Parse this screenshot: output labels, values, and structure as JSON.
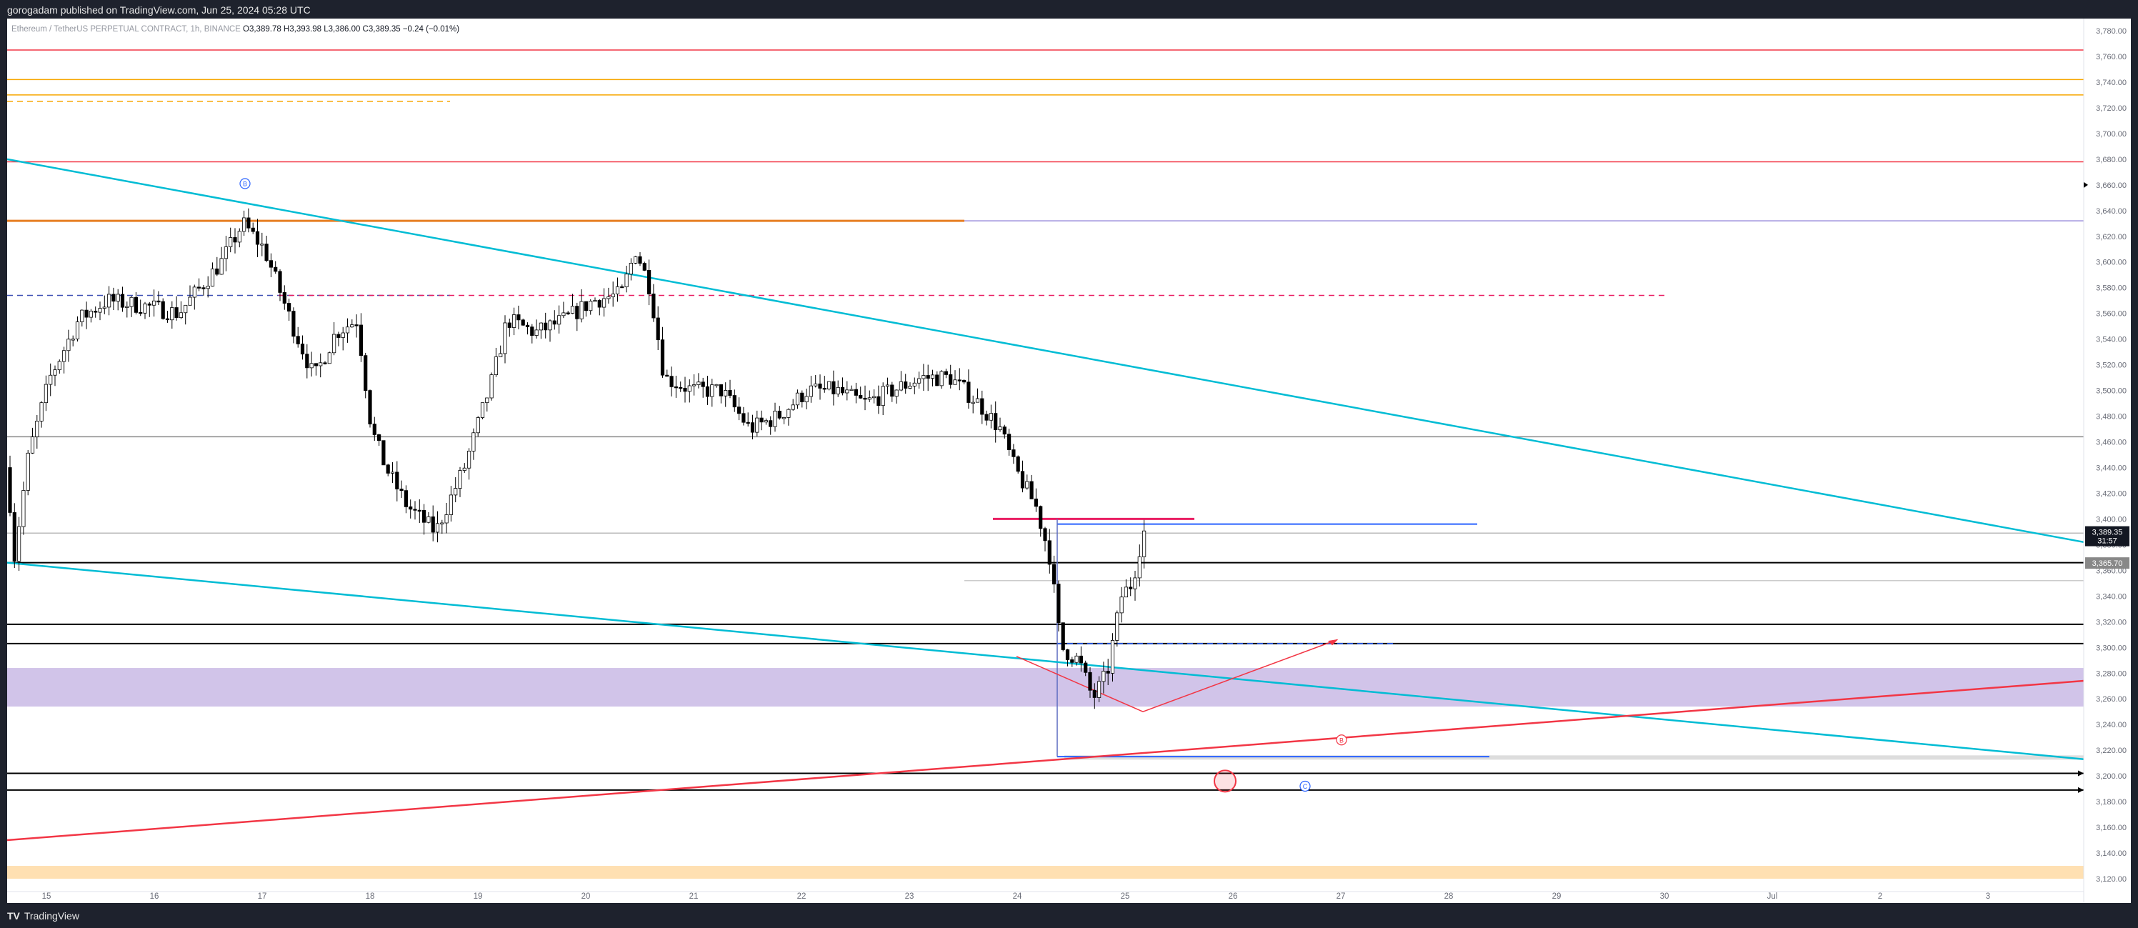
{
  "header": {
    "publisher_line": "gorogadam published on TradingView.com, Jun 25, 2024 05:28 UTC"
  },
  "footer": {
    "brand": "TradingView",
    "brand_logo": "TV"
  },
  "colors": {
    "candle_up_fill": "#ffffff",
    "candle_down_fill": "#000000",
    "candle_outline": "#000000",
    "teal": "#00bcd4",
    "red": "#f23645",
    "orange": "#f7a600",
    "purple_zone": "#d1c4e9",
    "peach_zone": "#ffe0b2",
    "blue": "#2962ff",
    "magenta": "#e91e63"
  },
  "chart_data": {
    "type": "candlestick",
    "symbol_line": "Ethereum / TetherUS PERPETUAL CONTRACT, 1h, BINANCE",
    "ohlc": {
      "open": "O3,389.78",
      "high": "H3,393.98",
      "low": "L3,386.00",
      "close": "C3,389.35",
      "change": "−0.24 (−0.01%)"
    },
    "price_axis": {
      "min": 3110,
      "max": 3785,
      "ticks": [
        "3,120.00",
        "3,140.00",
        "3,160.00",
        "3,180.00",
        "3,200.00",
        "3,220.00",
        "3,240.00",
        "3,260.00",
        "3,280.00",
        "3,300.00",
        "3,320.00",
        "3,340.00",
        "3,360.00",
        "3,380.00",
        "3,400.00",
        "3,420.00",
        "3,440.00",
        "3,460.00",
        "3,480.00",
        "3,500.00",
        "3,520.00",
        "3,540.00",
        "3,560.00",
        "3,580.00",
        "3,600.00",
        "3,620.00",
        "3,640.00",
        "3,660.00",
        "3,680.00",
        "3,700.00",
        "3,720.00",
        "3,740.00",
        "3,760.00",
        "3,780.00"
      ]
    },
    "time_axis": {
      "labels": [
        "15",
        "16",
        "17",
        "18",
        "19",
        "20",
        "21",
        "22",
        "23",
        "24",
        "25",
        "26",
        "27",
        "28",
        "29",
        "30",
        "Jul",
        "2",
        "3"
      ]
    },
    "price_labels": {
      "last_price": "3,389.35",
      "countdown": "31:57",
      "level_label": "3,365.70"
    },
    "wave_labels": [
      "B",
      "B",
      "C"
    ],
    "horizontal_levels": [
      {
        "price": 3765,
        "color": "#f23645",
        "style": "solid",
        "span": "full"
      },
      {
        "price": 3742,
        "color": "#f7a600",
        "style": "solid",
        "span": "full"
      },
      {
        "price": 3730,
        "color": "#f7a600",
        "style": "solid",
        "span": "full"
      },
      {
        "price": 3725,
        "color": "#f7a600",
        "style": "dashed",
        "span": "left"
      },
      {
        "price": 3678,
        "color": "#f23645",
        "style": "solid",
        "span": "full"
      },
      {
        "price": 3632,
        "color": "#e67e22",
        "style": "solid",
        "span": "left-thick"
      },
      {
        "price": 3632,
        "color": "#9c8fdc",
        "style": "solid",
        "span": "right"
      },
      {
        "price": 3574,
        "color": "#3f51b5",
        "style": "dashed",
        "span": "left"
      },
      {
        "price": 3574,
        "color": "#e91e63",
        "style": "dashed",
        "span": "mid"
      },
      {
        "price": 3464,
        "color": "#888888",
        "style": "solid",
        "span": "full"
      },
      {
        "price": 3389,
        "color": "#bbbbbb",
        "style": "solid",
        "span": "full"
      },
      {
        "price": 3366,
        "color": "#000000",
        "style": "solid",
        "span": "full"
      },
      {
        "price": 3352,
        "color": "#cccccc",
        "style": "solid",
        "span": "right"
      },
      {
        "price": 3318,
        "color": "#000000",
        "style": "solid",
        "span": "full"
      },
      {
        "price": 3303,
        "color": "#000000",
        "style": "solid",
        "span": "full"
      },
      {
        "price": 3303,
        "color": "#2962ff",
        "style": "dashed",
        "span": "short"
      },
      {
        "price": 3202,
        "color": "#000000",
        "style": "solid",
        "span": "full"
      },
      {
        "price": 3189,
        "color": "#000000",
        "style": "solid",
        "span": "full"
      }
    ],
    "zones": [
      {
        "from": 3254,
        "to": 3284,
        "color": "#d1c4e9"
      },
      {
        "from": 3120,
        "to": 3130,
        "color": "#ffe0b2"
      }
    ]
  }
}
